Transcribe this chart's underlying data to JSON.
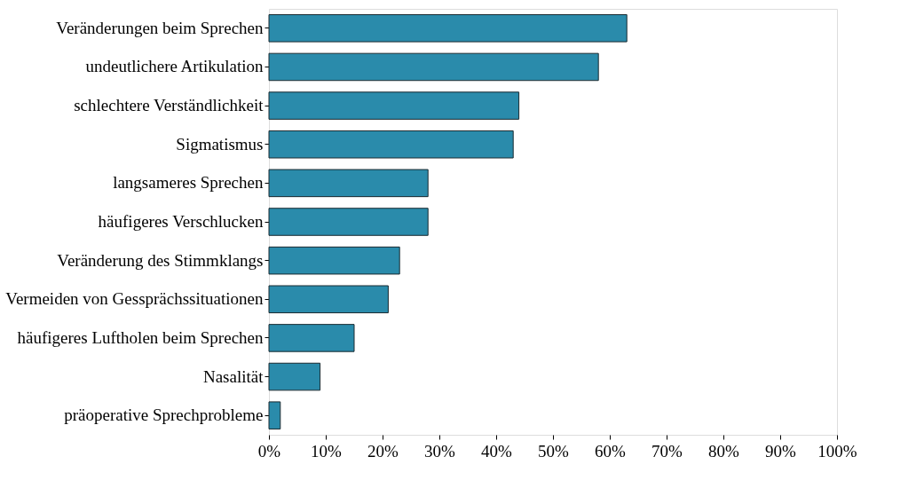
{
  "chart_data": {
    "type": "bar",
    "orientation": "horizontal",
    "categories": [
      "Veränderungen beim Sprechen",
      "undeutlichere Artikulation",
      "schlechtere Verständlichkeit",
      "Sigmatismus",
      "langsameres Sprechen",
      "häufigeres Verschlucken",
      "Veränderung des Stimmklangs",
      "Vermeiden von Gessprächssituationen",
      "häufigeres Luftholen beim Sprechen",
      "Nasalität",
      "präoperative Sprechprobleme"
    ],
    "values": [
      63,
      58,
      44,
      43,
      28,
      28,
      23,
      21,
      15,
      9,
      2
    ],
    "color": "#2a8bab",
    "xlim": [
      0,
      100
    ],
    "xticks": [
      {
        "value": 0,
        "label": "0%"
      },
      {
        "value": 10,
        "label": "10%"
      },
      {
        "value": 20,
        "label": "20%"
      },
      {
        "value": 30,
        "label": "30%"
      },
      {
        "value": 40,
        "label": "40%"
      },
      {
        "value": 50,
        "label": "50%"
      },
      {
        "value": 60,
        "label": "60%"
      },
      {
        "value": 70,
        "label": "70%"
      },
      {
        "value": 80,
        "label": "80%"
      },
      {
        "value": 90,
        "label": "90%"
      },
      {
        "value": 100,
        "label": "100%"
      }
    ],
    "grid": false
  }
}
